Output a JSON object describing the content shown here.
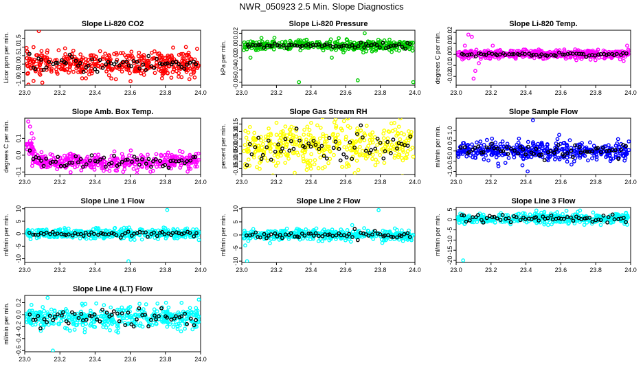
{
  "page_title": "NWR_050923  2.5 Min. Slope Diagnostics",
  "colors": {
    "red": "#ff0000",
    "green": "#00cc00",
    "magenta": "#ff00ff",
    "yellow": "#ffff00",
    "blue": "#0000ff",
    "cyan": "#00ffff",
    "black": "#000000"
  },
  "chart_data": [
    {
      "type": "scatter",
      "title": "Slope Li-820 CO2",
      "ylabel": "Licor ppm per min.",
      "color": "#ff0000",
      "xlim": [
        23.0,
        24.0
      ],
      "ylim": [
        -1.25,
        2.0
      ],
      "yticks": [
        -1,
        -0.5,
        0,
        0.5,
        1,
        1.5
      ],
      "yticklabels": [
        "-1.0",
        "-0.5",
        "0.0",
        "0.5",
        "1.0",
        "1.5"
      ],
      "xticks": [
        23.0,
        23.2,
        23.4,
        23.6,
        23.8,
        24.0
      ],
      "xticklabels": [
        "23.0",
        "23.2",
        "23.4",
        "23.6",
        "23.8",
        "24.0"
      ],
      "center": 0.0,
      "spread": 0.35,
      "black_spread": 0.25,
      "outliers": [
        [
          23.08,
          1.95
        ],
        [
          23.05,
          -1.0
        ],
        [
          23.1,
          -1.1
        ],
        [
          23.05,
          1.0
        ],
        [
          23.9,
          0.6
        ],
        [
          23.92,
          0.55
        ],
        [
          23.98,
          0.9
        ],
        [
          23.02,
          0.6
        ]
      ]
    },
    {
      "type": "scatter",
      "title": "Slope Li-820 Pressure",
      "ylabel": "kPa per min.",
      "color": "#00cc00",
      "xlim": [
        23.0,
        24.0
      ],
      "ylim": [
        -0.065,
        0.025
      ],
      "yticks": [
        -0.06,
        -0.04,
        -0.02,
        0.0,
        0.02
      ],
      "yticklabels": [
        "-0.06",
        "-0.04",
        "-0.02",
        "0.00",
        "0.02"
      ],
      "xticks": [
        23.0,
        23.2,
        23.4,
        23.6,
        23.8,
        24.0
      ],
      "xticklabels": [
        "23.0",
        "23.2",
        "23.4",
        "23.6",
        "23.8",
        "24.0"
      ],
      "center": 0.0,
      "spread": 0.004,
      "black_spread": 0.002,
      "outliers": [
        [
          23.33,
          -0.06
        ],
        [
          23.67,
          -0.057
        ],
        [
          23.99,
          -0.06
        ],
        [
          23.71,
          0.02
        ],
        [
          23.56,
          0.012
        ],
        [
          23.05,
          -0.02
        ],
        [
          23.52,
          -0.02
        ]
      ]
    },
    {
      "type": "scatter",
      "title": "Slope Li-820 Temp.",
      "ylabel": "degrees C per min.",
      "color": "#ff00ff",
      "xlim": [
        23.0,
        24.0
      ],
      "ylim": [
        -0.028,
        0.022
      ],
      "yticks": [
        -0.02,
        -0.01,
        0.0,
        0.01,
        0.02
      ],
      "yticklabels": [
        "-0.02",
        "-0.01",
        "0.00",
        "0.01",
        "0.02"
      ],
      "xticks": [
        23.0,
        23.2,
        23.4,
        23.6,
        23.8,
        24.0
      ],
      "xticklabels": [
        "23.0",
        "23.2",
        "23.4",
        "23.6",
        "23.8",
        "24.0"
      ],
      "center": 0.0,
      "spread": 0.002,
      "black_spread": 0.0008,
      "outliers": [
        [
          23.07,
          0.018
        ],
        [
          23.09,
          0.016
        ],
        [
          23.1,
          -0.022
        ],
        [
          23.11,
          -0.015
        ],
        [
          23.05,
          0.008
        ],
        [
          23.21,
          0.008
        ],
        [
          23.13,
          -0.008
        ],
        [
          23.98,
          0.008
        ],
        [
          23.96,
          -0.006
        ]
      ]
    },
    {
      "type": "scatter",
      "title": "Slope Amb. Box Temp.",
      "ylabel": "degrees C per min.",
      "color": "#ff00ff",
      "xlim": [
        23.0,
        24.0
      ],
      "ylim": [
        -0.115,
        0.22
      ],
      "yticks": [
        -0.1,
        0.0,
        0.1
      ],
      "yticklabels": [
        "-0.1",
        "0.0",
        "0.1"
      ],
      "xticks": [
        23.0,
        23.2,
        23.4,
        23.6,
        23.8,
        24.0
      ],
      "xticklabels": [
        "23.0",
        "23.2",
        "23.4",
        "23.6",
        "23.8",
        "24.0"
      ],
      "center": -0.04,
      "spread": 0.025,
      "black_spread": 0.02,
      "decay": true,
      "outliers": [
        [
          23.02,
          0.2
        ],
        [
          23.03,
          0.17
        ],
        [
          23.04,
          0.13
        ],
        [
          23.05,
          0.1
        ]
      ]
    },
    {
      "type": "scatter",
      "title": "Slope Gas Stream RH",
      "ylabel": "percent per min.",
      "color": "#ffff00",
      "xlim": [
        23.0,
        24.0
      ],
      "ylim": [
        -0.19,
        0.19
      ],
      "yticks": [
        -0.15,
        -0.1,
        -0.05,
        0.0,
        0.05,
        0.1,
        0.15
      ],
      "yticklabels": [
        "-0.15",
        "-0.10",
        "-0.05",
        "0.00",
        "0.05",
        "0.10",
        "0.15"
      ],
      "xticks": [
        23.0,
        23.2,
        23.4,
        23.6,
        23.8,
        24.0
      ],
      "xticklabels": [
        "23.0",
        "23.2",
        "23.4",
        "23.6",
        "23.8",
        "24.0"
      ],
      "center": 0.0,
      "spread": 0.075,
      "black_spread": 0.05,
      "outliers": [
        [
          23.59,
          0.17
        ],
        [
          23.99,
          -0.07
        ]
      ]
    },
    {
      "type": "scatter",
      "title": "Slope Sample Flow",
      "ylabel": "ml/min per min.",
      "color": "#0000ff",
      "xlim": [
        23.0,
        24.0
      ],
      "ylim": [
        -1.15,
        1.6
      ],
      "yticks": [
        -1.0,
        -0.5,
        0.0,
        0.5,
        1.0
      ],
      "yticklabels": [
        "-1.0",
        "-0.5",
        "0.0",
        "0.5",
        "1.0"
      ],
      "xticks": [
        23.0,
        23.2,
        23.4,
        23.6,
        23.8,
        24.0
      ],
      "xticklabels": [
        "23.0",
        "23.2",
        "23.4",
        "23.6",
        "23.8",
        "24.0"
      ],
      "center": 0.0,
      "spread": 0.22,
      "black_spread": 0.18,
      "outliers": [
        [
          23.44,
          1.5
        ],
        [
          23.41,
          -1.0
        ],
        [
          23.38,
          -0.7
        ],
        [
          23.36,
          0.6
        ],
        [
          23.62,
          0.4
        ]
      ]
    },
    {
      "type": "scatter",
      "title": "Slope Line 1 Flow",
      "ylabel": "ml/min per min.",
      "color": "#00ffff",
      "xlim": [
        23.0,
        24.0
      ],
      "ylim": [
        -11.5,
        10.5
      ],
      "yticks": [
        -10,
        -5,
        0,
        5,
        10
      ],
      "yticklabels": [
        "-10",
        "-5",
        "0",
        "5",
        "10"
      ],
      "xticks": [
        23.0,
        23.2,
        23.4,
        23.6,
        23.8,
        24.0
      ],
      "xticklabels": [
        "23.0",
        "23.2",
        "23.4",
        "23.6",
        "23.8",
        "24.0"
      ],
      "center": 0.0,
      "spread": 1.0,
      "black_spread": 0.5,
      "outliers": [
        [
          23.59,
          -11
        ],
        [
          23.81,
          9.5
        ],
        [
          23.79,
          2.5
        ],
        [
          23.99,
          -2.5
        ]
      ]
    },
    {
      "type": "scatter",
      "title": "Slope Line 2 Flow",
      "ylabel": "ml/min per min.",
      "color": "#00ffff",
      "xlim": [
        23.0,
        24.0
      ],
      "ylim": [
        -10.5,
        10.5
      ],
      "yticks": [
        -10,
        -5,
        0,
        5,
        10
      ],
      "yticklabels": [
        "-10",
        "-5",
        "0",
        "5",
        "10"
      ],
      "xticks": [
        23.0,
        23.2,
        23.4,
        23.6,
        23.8,
        24.0
      ],
      "xticklabels": [
        "23.0",
        "23.2",
        "23.4",
        "23.6",
        "23.8",
        "24.0"
      ],
      "center": 0.0,
      "spread": 1.0,
      "black_spread": 0.7,
      "outliers": [
        [
          23.03,
          -10
        ],
        [
          23.79,
          9.5
        ],
        [
          23.02,
          -4
        ],
        [
          23.98,
          -2
        ]
      ]
    },
    {
      "type": "scatter",
      "title": "Slope Line 3 Flow",
      "ylabel": "ml/min per min.",
      "color": "#00ffff",
      "xlim": [
        23.0,
        24.0
      ],
      "ylim": [
        -21,
        6
      ],
      "yticks": [
        -20,
        -15,
        -10,
        -5,
        0,
        5
      ],
      "yticklabels": [
        "-20",
        "-15",
        "-10",
        "-5",
        "0",
        "5"
      ],
      "xticks": [
        23.0,
        23.2,
        23.4,
        23.6,
        23.8,
        24.0
      ],
      "xticklabels": [
        "23.0",
        "23.2",
        "23.4",
        "23.6",
        "23.8",
        "24.0"
      ],
      "center": 0.5,
      "spread": 1.3,
      "black_spread": 0.9,
      "outliers": [
        [
          23.04,
          -20
        ],
        [
          23.46,
          4.5
        ],
        [
          23.71,
          4.5
        ],
        [
          23.05,
          -2
        ]
      ]
    },
    {
      "type": "scatter",
      "title": "Slope Line 4 (LT) Flow",
      "ylabel": "ml/min per min.",
      "color": "#00ffff",
      "xlim": [
        23.0,
        24.0
      ],
      "ylim": [
        -0.62,
        0.32
      ],
      "yticks": [
        -0.6,
        -0.4,
        -0.2,
        0.0,
        0.2
      ],
      "yticklabels": [
        "-0.6",
        "-0.4",
        "-0.2",
        "0.0",
        "0.2"
      ],
      "xticks": [
        23.0,
        23.2,
        23.4,
        23.6,
        23.8,
        24.0
      ],
      "xticklabels": [
        "23.0",
        "23.2",
        "23.4",
        "23.6",
        "23.8",
        "24.0"
      ],
      "center": -0.05,
      "spread": 0.09,
      "black_spread": 0.07,
      "outliers": [
        [
          23.16,
          -0.6
        ],
        [
          23.13,
          0.28
        ],
        [
          23.99,
          0.25
        ]
      ]
    }
  ]
}
